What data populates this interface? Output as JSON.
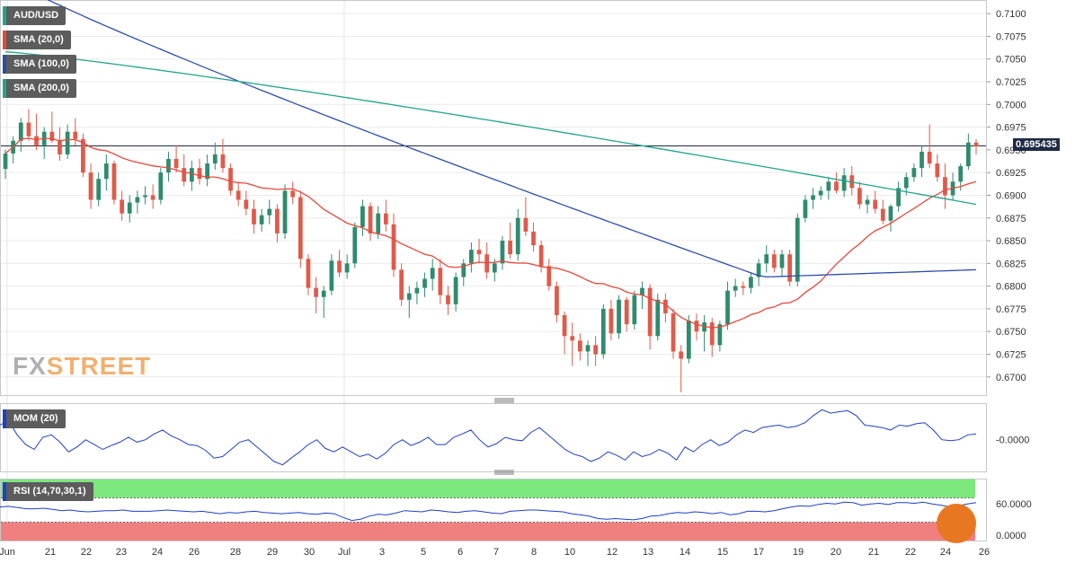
{
  "chart_data": [
    {
      "type": "candlestick",
      "symbol": "AUD/USD",
      "overlays": [
        {
          "name": "SMA (20,0)",
          "color": "#e8473a"
        },
        {
          "name": "SMA (100,0)",
          "color": "#2a4cad"
        },
        {
          "name": "SMA (200,0)",
          "color": "#1fa58c"
        }
      ],
      "ylim": [
        0.668,
        0.7115
      ],
      "y_ticks": [
        "0.7100",
        "0.7075",
        "0.7050",
        "0.7025",
        "0.7000",
        "0.6975",
        "0.6950",
        "0.6925",
        "0.6900",
        "0.6875",
        "0.6850",
        "0.6825",
        "0.6800",
        "0.6775",
        "0.6750",
        "0.6725",
        "0.6700"
      ],
      "last_price": 0.69543,
      "last_price_label": "0.695435",
      "x_labels": [
        "Jun",
        "21",
        "22",
        "23",
        "24",
        "26",
        "28",
        "29",
        "30",
        "Jul",
        "3",
        "5",
        "6",
        "7",
        "8",
        "10",
        "12",
        "13",
        "14",
        "15",
        "17",
        "19",
        "20",
        "21",
        "22",
        "24",
        "26"
      ],
      "colors": {
        "up": "#2e8b6e",
        "down": "#e05a4a"
      },
      "ohlc": [
        [
          0.6929,
          0.695,
          0.6918,
          0.6946
        ],
        [
          0.6946,
          0.6965,
          0.6935,
          0.696
        ],
        [
          0.696,
          0.6985,
          0.6948,
          0.698
        ],
        [
          0.698,
          0.6995,
          0.696,
          0.6965
        ],
        [
          0.6965,
          0.699,
          0.695,
          0.6955
        ],
        [
          0.6955,
          0.6975,
          0.694,
          0.697
        ],
        [
          0.697,
          0.6992,
          0.6958,
          0.696
        ],
        [
          0.696,
          0.6975,
          0.6938,
          0.6945
        ],
        [
          0.6945,
          0.6978,
          0.694,
          0.697
        ],
        [
          0.697,
          0.6985,
          0.6955,
          0.6962
        ],
        [
          0.6962,
          0.6968,
          0.692,
          0.6925
        ],
        [
          0.6925,
          0.6935,
          0.6885,
          0.6895
        ],
        [
          0.6895,
          0.6925,
          0.6888,
          0.6918
        ],
        [
          0.6918,
          0.6945,
          0.6905,
          0.6935
        ],
        [
          0.6935,
          0.6938,
          0.689,
          0.6895
        ],
        [
          0.6895,
          0.6905,
          0.6872,
          0.688
        ],
        [
          0.688,
          0.69,
          0.687,
          0.6892
        ],
        [
          0.6892,
          0.6905,
          0.688,
          0.6898
        ],
        [
          0.6898,
          0.691,
          0.689,
          0.69
        ],
        [
          0.69,
          0.6912,
          0.6885,
          0.6895
        ],
        [
          0.6895,
          0.693,
          0.689,
          0.6925
        ],
        [
          0.6925,
          0.6948,
          0.6915,
          0.694
        ],
        [
          0.694,
          0.6955,
          0.6925,
          0.693
        ],
        [
          0.693,
          0.6945,
          0.691,
          0.6915
        ],
        [
          0.6915,
          0.6938,
          0.6905,
          0.693
        ],
        [
          0.693,
          0.694,
          0.6912,
          0.6918
        ],
        [
          0.6918,
          0.6945,
          0.691,
          0.6935
        ],
        [
          0.6935,
          0.6958,
          0.6928,
          0.6945
        ],
        [
          0.6945,
          0.6962,
          0.6925,
          0.693
        ],
        [
          0.693,
          0.6935,
          0.69,
          0.6905
        ],
        [
          0.6905,
          0.6915,
          0.6888,
          0.6895
        ],
        [
          0.6895,
          0.6905,
          0.6878,
          0.6885
        ],
        [
          0.6885,
          0.6895,
          0.6858,
          0.6868
        ],
        [
          0.6868,
          0.6885,
          0.686,
          0.6878
        ],
        [
          0.6878,
          0.6895,
          0.6868,
          0.6885
        ],
        [
          0.6885,
          0.689,
          0.6848,
          0.6858
        ],
        [
          0.6858,
          0.6912,
          0.6852,
          0.6905
        ],
        [
          0.6905,
          0.6915,
          0.689,
          0.6898
        ],
        [
          0.6898,
          0.6905,
          0.682,
          0.683
        ],
        [
          0.683,
          0.6835,
          0.679,
          0.6798
        ],
        [
          0.6798,
          0.681,
          0.677,
          0.6788
        ],
        [
          0.6788,
          0.68,
          0.6765,
          0.6795
        ],
        [
          0.6795,
          0.6835,
          0.679,
          0.6828
        ],
        [
          0.6828,
          0.684,
          0.681,
          0.6815
        ],
        [
          0.6815,
          0.6835,
          0.6808,
          0.6825
        ],
        [
          0.6825,
          0.687,
          0.682,
          0.6865
        ],
        [
          0.6865,
          0.6895,
          0.6855,
          0.6888
        ],
        [
          0.6888,
          0.6892,
          0.685,
          0.6858
        ],
        [
          0.6858,
          0.6888,
          0.6852,
          0.688
        ],
        [
          0.688,
          0.6895,
          0.686,
          0.6868
        ],
        [
          0.6868,
          0.688,
          0.681,
          0.6818
        ],
        [
          0.6818,
          0.6825,
          0.6778,
          0.6785
        ],
        [
          0.6785,
          0.68,
          0.6765,
          0.6792
        ],
        [
          0.6792,
          0.6805,
          0.678,
          0.6798
        ],
        [
          0.6798,
          0.6815,
          0.6788,
          0.6808
        ],
        [
          0.6808,
          0.683,
          0.6795,
          0.682
        ],
        [
          0.682,
          0.683,
          0.678,
          0.679
        ],
        [
          0.679,
          0.68,
          0.6768,
          0.678
        ],
        [
          0.678,
          0.6815,
          0.6772,
          0.681
        ],
        [
          0.681,
          0.683,
          0.68,
          0.6825
        ],
        [
          0.6825,
          0.6848,
          0.6815,
          0.684
        ],
        [
          0.684,
          0.6852,
          0.6825,
          0.6835
        ],
        [
          0.6835,
          0.6848,
          0.6808,
          0.6815
        ],
        [
          0.6815,
          0.683,
          0.6805,
          0.6825
        ],
        [
          0.6825,
          0.6855,
          0.6818,
          0.685
        ],
        [
          0.685,
          0.687,
          0.683,
          0.6835
        ],
        [
          0.6835,
          0.6885,
          0.6828,
          0.6875
        ],
        [
          0.6875,
          0.6898,
          0.6855,
          0.686
        ],
        [
          0.686,
          0.687,
          0.6838,
          0.6845
        ],
        [
          0.6845,
          0.685,
          0.6815,
          0.6822
        ],
        [
          0.6822,
          0.683,
          0.6795,
          0.68
        ],
        [
          0.68,
          0.6805,
          0.676,
          0.6768
        ],
        [
          0.6768,
          0.6772,
          0.6725,
          0.6745
        ],
        [
          0.6745,
          0.676,
          0.6712,
          0.674
        ],
        [
          0.674,
          0.6748,
          0.6718,
          0.6728
        ],
        [
          0.6728,
          0.674,
          0.6712,
          0.6735
        ],
        [
          0.6735,
          0.6745,
          0.6712,
          0.6725
        ],
        [
          0.6725,
          0.678,
          0.672,
          0.6775
        ],
        [
          0.6775,
          0.6785,
          0.674,
          0.6748
        ],
        [
          0.6748,
          0.679,
          0.6742,
          0.6785
        ],
        [
          0.6785,
          0.6788,
          0.675,
          0.6758
        ],
        [
          0.6758,
          0.6795,
          0.6752,
          0.679
        ],
        [
          0.679,
          0.6805,
          0.6775,
          0.6798
        ],
        [
          0.6798,
          0.6802,
          0.673,
          0.6745
        ],
        [
          0.6745,
          0.6792,
          0.674,
          0.6785
        ],
        [
          0.6785,
          0.6792,
          0.676,
          0.677
        ],
        [
          0.677,
          0.6775,
          0.672,
          0.6728
        ],
        [
          0.6728,
          0.6735,
          0.6683,
          0.672
        ],
        [
          0.672,
          0.6768,
          0.6715,
          0.6762
        ],
        [
          0.6762,
          0.677,
          0.674,
          0.675
        ],
        [
          0.675,
          0.6768,
          0.6728,
          0.676
        ],
        [
          0.676,
          0.6765,
          0.6722,
          0.6735
        ],
        [
          0.6735,
          0.6762,
          0.6728,
          0.6758
        ],
        [
          0.6758,
          0.6805,
          0.6752,
          0.6795
        ],
        [
          0.6795,
          0.6808,
          0.6788,
          0.68
        ],
        [
          0.68,
          0.6805,
          0.679,
          0.6798
        ],
        [
          0.6798,
          0.6815,
          0.6792,
          0.681
        ],
        [
          0.681,
          0.683,
          0.68,
          0.6825
        ],
        [
          0.6825,
          0.6845,
          0.6815,
          0.6835
        ],
        [
          0.6835,
          0.684,
          0.6815,
          0.682
        ],
        [
          0.682,
          0.684,
          0.681,
          0.6835
        ],
        [
          0.6835,
          0.684,
          0.68,
          0.6805
        ],
        [
          0.6805,
          0.688,
          0.68,
          0.6875
        ],
        [
          0.6875,
          0.69,
          0.687,
          0.6895
        ],
        [
          0.6895,
          0.6908,
          0.6885,
          0.69
        ],
        [
          0.69,
          0.691,
          0.6895,
          0.6905
        ],
        [
          0.6905,
          0.692,
          0.6895,
          0.6915
        ],
        [
          0.6915,
          0.6925,
          0.6902,
          0.6905
        ],
        [
          0.6905,
          0.693,
          0.6898,
          0.6922
        ],
        [
          0.6922,
          0.6932,
          0.69,
          0.6908
        ],
        [
          0.6908,
          0.6915,
          0.6885,
          0.689
        ],
        [
          0.689,
          0.69,
          0.688,
          0.6895
        ],
        [
          0.6895,
          0.6905,
          0.688,
          0.6885
        ],
        [
          0.6885,
          0.6895,
          0.6868,
          0.6872
        ],
        [
          0.6872,
          0.689,
          0.686,
          0.6888
        ],
        [
          0.6888,
          0.6915,
          0.6882,
          0.6908
        ],
        [
          0.6908,
          0.6925,
          0.69,
          0.692
        ],
        [
          0.692,
          0.6935,
          0.6915,
          0.693
        ],
        [
          0.693,
          0.6955,
          0.692,
          0.6948
        ],
        [
          0.6948,
          0.6978,
          0.693,
          0.6935
        ],
        [
          0.6935,
          0.6945,
          0.6915,
          0.692
        ],
        [
          0.692,
          0.6935,
          0.6885,
          0.69
        ],
        [
          0.69,
          0.6925,
          0.6895,
          0.6915
        ],
        [
          0.6915,
          0.6935,
          0.6905,
          0.6932
        ],
        [
          0.6932,
          0.6968,
          0.6928,
          0.6958
        ],
        [
          0.6958,
          0.6962,
          0.6945,
          0.6954
        ]
      ]
    },
    {
      "type": "line",
      "title": "MOM (20)",
      "color": "#1e3fc8",
      "y_ticks": [
        "-0.0000"
      ],
      "ylim": [
        -0.006,
        0.007
      ],
      "values": [
        0.003,
        0.004,
        0.001,
        -0.001,
        -0.002,
        0.0005,
        0.001,
        -0.0005,
        -0.0025,
        -0.0015,
        0.0,
        -0.001,
        -0.002,
        -0.0012,
        -0.0005,
        0.0005,
        -0.0005,
        0.0,
        0.0012,
        0.002,
        0.0008,
        0.0,
        -0.001,
        -0.0012,
        -0.0022,
        -0.0038,
        -0.0035,
        -0.002,
        -0.0005,
        0.0,
        -0.0015,
        -0.003,
        -0.0045,
        -0.0052,
        -0.0038,
        -0.0025,
        -0.001,
        0.0,
        -0.0018,
        -0.0025,
        -0.0015,
        -0.0025,
        -0.0035,
        -0.003,
        -0.004,
        -0.0028,
        -0.001,
        0.0,
        -0.0012,
        -0.0005,
        0.0005,
        -0.001,
        -0.001,
        0.0005,
        0.0012,
        0.002,
        0.0,
        -0.0015,
        -0.0008,
        0.0005,
        0.0,
        -0.0002,
        0.0015,
        0.0025,
        0.001,
        -0.0005,
        -0.002,
        -0.003,
        -0.0035,
        -0.0045,
        -0.0038,
        -0.0025,
        -0.0032,
        -0.0042,
        -0.0025,
        -0.0035,
        -0.003,
        -0.002,
        -0.0028,
        -0.0042,
        -0.0015,
        -0.0025,
        -0.001,
        0.0,
        -0.0012,
        -0.0005,
        0.001,
        0.002,
        0.0015,
        0.0025,
        0.0028,
        0.003,
        0.0025,
        0.0028,
        0.0035,
        0.005,
        0.0062,
        0.0055,
        0.0058,
        0.006,
        0.005,
        0.003,
        0.0028,
        0.0025,
        0.002,
        0.003,
        0.0028,
        0.0033,
        0.0035,
        0.002,
        0.0,
        -0.0002,
        0.0,
        0.001,
        0.0012
      ]
    },
    {
      "type": "line",
      "title": "RSI (14,70,30,1)",
      "color": "#1e3fc8",
      "y_ticks": [
        "60.0000",
        "0.0000"
      ],
      "ylim": [
        0,
        100
      ],
      "zones": {
        "overbought": {
          "from": 70,
          "color": "#7de87d"
        },
        "oversold": {
          "to": 30,
          "color": "#f08080"
        }
      },
      "values": [
        55,
        56,
        54,
        52,
        52,
        53,
        51,
        49,
        50,
        48,
        47,
        48,
        49,
        49,
        50,
        48,
        48,
        48,
        49,
        50,
        49,
        48,
        47,
        48,
        46,
        44,
        46,
        45,
        47,
        48,
        46,
        45,
        44,
        45,
        46,
        44,
        43,
        45,
        44,
        38,
        33,
        35,
        40,
        43,
        42,
        45,
        49,
        48,
        47,
        50,
        49,
        47,
        46,
        48,
        49,
        47,
        45,
        44,
        48,
        49,
        50,
        50,
        49,
        48,
        47,
        44,
        42,
        40,
        36,
        35,
        36,
        35,
        34,
        36,
        40,
        41,
        44,
        46,
        45,
        47,
        46,
        44,
        46,
        42,
        44,
        48,
        48,
        47,
        49,
        52,
        55,
        57,
        56,
        59,
        61,
        60,
        63,
        62,
        58,
        60,
        61,
        59,
        62,
        62,
        61,
        63,
        60,
        58,
        55,
        57,
        60,
        62
      ]
    }
  ]
}
